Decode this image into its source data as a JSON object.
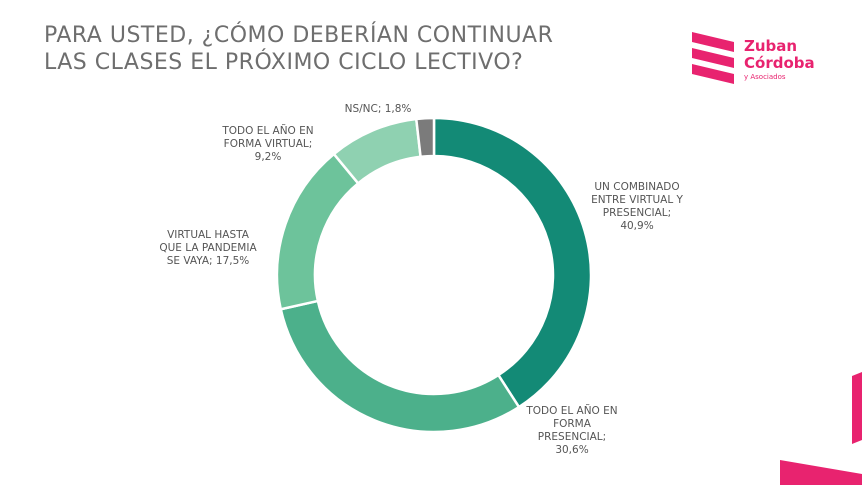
{
  "title": {
    "line1": "PARA USTED, ¿CÓMO DEBERÍAN CONTINUAR",
    "line2": "LAS CLASES EL PRÓXIMO CICLO LECTIVO?"
  },
  "logo": {
    "line1": "Zuban",
    "line2": "Córdoba",
    "line3": "y Asociados"
  },
  "colors": {
    "brand": "#e8236f",
    "title": "#6e6e6e",
    "label": "#555555"
  },
  "chart_data": {
    "type": "pie",
    "variant": "donut",
    "title": "PARA USTED, ¿CÓMO DEBERÍAN CONTINUAR LAS CLASES EL PRÓXIMO CICLO LECTIVO?",
    "categories": [
      "UN COMBINADO ENTRE VIRTUAL Y PRESENCIAL",
      "TODO EL AÑO EN FORMA PRESENCIAL",
      "VIRTUAL HASTA QUE LA PANDEMIA SE VAYA",
      "TODO EL AÑO EN FORMA VIRTUAL",
      "NS/NC"
    ],
    "values": [
      40.9,
      30.6,
      17.5,
      9.2,
      1.8
    ],
    "colors": [
      "#138a76",
      "#4cb08b",
      "#6dc39b",
      "#8fd1b1",
      "#7b7b7b"
    ],
    "labels": [
      [
        "UN COMBINADO",
        "ENTRE VIRTUAL Y",
        "PRESENCIAL;",
        "40,9%"
      ],
      [
        "TODO EL AÑO EN",
        "FORMA",
        "PRESENCIAL;",
        "30,6%"
      ],
      [
        "VIRTUAL HASTA",
        "QUE LA PANDEMIA",
        "SE VAYA; 17,5%"
      ],
      [
        "TODO EL AÑO EN",
        "FORMA VIRTUAL;",
        "9,2%"
      ],
      [
        "NS/NC; 1,8%"
      ]
    ],
    "start": "12 o'clock",
    "direction": "clockwise",
    "legend": "none"
  }
}
